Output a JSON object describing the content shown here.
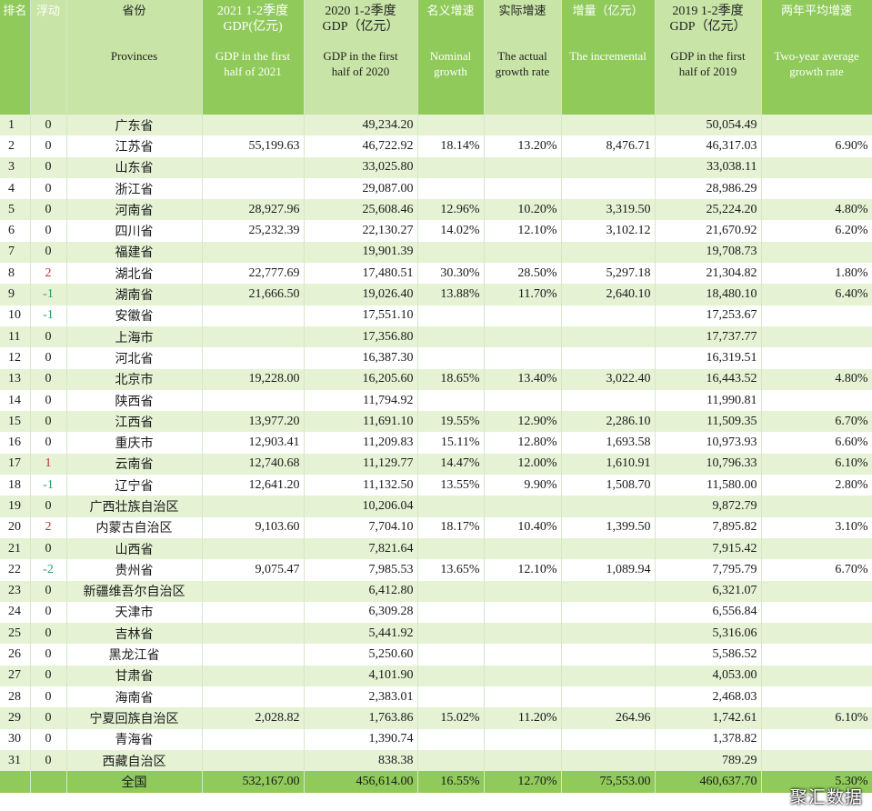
{
  "columns": {
    "rank": {
      "cn": "排名"
    },
    "float": {
      "cn": "浮动"
    },
    "province": {
      "cn": "省份",
      "en": "Provinces"
    },
    "gdp2021": {
      "cn1": "2021 1-2季度",
      "cn2": "GDP(亿元)",
      "en1": "GDP in the first",
      "en2": "half of 2021"
    },
    "gdp2020": {
      "cn1": "2020 1-2季度",
      "cn2": "GDP（亿元）",
      "en1": "GDP in the first",
      "en2": "half of 2020"
    },
    "nominal": {
      "cn": "名义增速",
      "en1": "Nominal",
      "en2": "growth"
    },
    "actual": {
      "cn": "实际增速",
      "en1": "The actual",
      "en2": "growth rate"
    },
    "increment": {
      "cn": "增量（亿元）",
      "en": "The incremental"
    },
    "gdp2019": {
      "cn1": "2019 1-2季度",
      "cn2": "GDP（亿元）",
      "en1": "GDP in the first",
      "en2": "half of 2019"
    },
    "avg": {
      "cn": "两年平均增速",
      "en1": "Two-year  average",
      "en2": "growth rate"
    }
  },
  "rows": [
    {
      "rank": "1",
      "float": "0",
      "province": "广东省",
      "gdp2021": "",
      "gdp2020": "49,234.20",
      "nominal": "",
      "actual": "",
      "increment": "",
      "gdp2019": "50,054.49",
      "avg": ""
    },
    {
      "rank": "2",
      "float": "0",
      "province": "江苏省",
      "gdp2021": "55,199.63",
      "gdp2020": "46,722.92",
      "nominal": "18.14%",
      "actual": "13.20%",
      "increment": "8,476.71",
      "gdp2019": "46,317.03",
      "avg": "6.90%"
    },
    {
      "rank": "3",
      "float": "0",
      "province": "山东省",
      "gdp2021": "",
      "gdp2020": "33,025.80",
      "nominal": "",
      "actual": "",
      "increment": "",
      "gdp2019": "33,038.11",
      "avg": ""
    },
    {
      "rank": "4",
      "float": "0",
      "province": "浙江省",
      "gdp2021": "",
      "gdp2020": "29,087.00",
      "nominal": "",
      "actual": "",
      "increment": "",
      "gdp2019": "28,986.29",
      "avg": ""
    },
    {
      "rank": "5",
      "float": "0",
      "province": "河南省",
      "gdp2021": "28,927.96",
      "gdp2020": "25,608.46",
      "nominal": "12.96%",
      "actual": "10.20%",
      "increment": "3,319.50",
      "gdp2019": "25,224.20",
      "avg": "4.80%"
    },
    {
      "rank": "6",
      "float": "0",
      "province": "四川省",
      "gdp2021": "25,232.39",
      "gdp2020": "22,130.27",
      "nominal": "14.02%",
      "actual": "12.10%",
      "increment": "3,102.12",
      "gdp2019": "21,670.92",
      "avg": "6.20%"
    },
    {
      "rank": "7",
      "float": "0",
      "province": "福建省",
      "gdp2021": "",
      "gdp2020": "19,901.39",
      "nominal": "",
      "actual": "",
      "increment": "",
      "gdp2019": "19,708.73",
      "avg": ""
    },
    {
      "rank": "8",
      "float": "2",
      "province": "湖北省",
      "gdp2021": "22,777.69",
      "gdp2020": "17,480.51",
      "nominal": "30.30%",
      "actual": "28.50%",
      "increment": "5,297.18",
      "gdp2019": "21,304.82",
      "avg": "1.80%"
    },
    {
      "rank": "9",
      "float": "-1",
      "province": "湖南省",
      "gdp2021": "21,666.50",
      "gdp2020": "19,026.40",
      "nominal": "13.88%",
      "actual": "11.70%",
      "increment": "2,640.10",
      "gdp2019": "18,480.10",
      "avg": "6.40%"
    },
    {
      "rank": "10",
      "float": "-1",
      "province": "安徽省",
      "gdp2021": "",
      "gdp2020": "17,551.10",
      "nominal": "",
      "actual": "",
      "increment": "",
      "gdp2019": "17,253.67",
      "avg": ""
    },
    {
      "rank": "11",
      "float": "0",
      "province": "上海市",
      "gdp2021": "",
      "gdp2020": "17,356.80",
      "nominal": "",
      "actual": "",
      "increment": "",
      "gdp2019": "17,737.77",
      "avg": ""
    },
    {
      "rank": "12",
      "float": "0",
      "province": "河北省",
      "gdp2021": "",
      "gdp2020": "16,387.30",
      "nominal": "",
      "actual": "",
      "increment": "",
      "gdp2019": "16,319.51",
      "avg": ""
    },
    {
      "rank": "13",
      "float": "0",
      "province": "北京市",
      "gdp2021": "19,228.00",
      "gdp2020": "16,205.60",
      "nominal": "18.65%",
      "actual": "13.40%",
      "increment": "3,022.40",
      "gdp2019": "16,443.52",
      "avg": "4.80%"
    },
    {
      "rank": "14",
      "float": "0",
      "province": "陕西省",
      "gdp2021": "",
      "gdp2020": "11,794.92",
      "nominal": "",
      "actual": "",
      "increment": "",
      "gdp2019": "11,990.81",
      "avg": ""
    },
    {
      "rank": "15",
      "float": "0",
      "province": "江西省",
      "gdp2021": "13,977.20",
      "gdp2020": "11,691.10",
      "nominal": "19.55%",
      "actual": "12.90%",
      "increment": "2,286.10",
      "gdp2019": "11,509.35",
      "avg": "6.70%"
    },
    {
      "rank": "16",
      "float": "0",
      "province": "重庆市",
      "gdp2021": "12,903.41",
      "gdp2020": "11,209.83",
      "nominal": "15.11%",
      "actual": "12.80%",
      "increment": "1,693.58",
      "gdp2019": "10,973.93",
      "avg": "6.60%"
    },
    {
      "rank": "17",
      "float": "1",
      "province": "云南省",
      "gdp2021": "12,740.68",
      "gdp2020": "11,129.77",
      "nominal": "14.47%",
      "actual": "12.00%",
      "increment": "1,610.91",
      "gdp2019": "10,796.33",
      "avg": "6.10%"
    },
    {
      "rank": "18",
      "float": "-1",
      "province": "辽宁省",
      "gdp2021": "12,641.20",
      "gdp2020": "11,132.50",
      "nominal": "13.55%",
      "actual": "9.90%",
      "increment": "1,508.70",
      "gdp2019": "11,580.00",
      "avg": "2.80%"
    },
    {
      "rank": "19",
      "float": "0",
      "province": "广西壮族自治区",
      "gdp2021": "",
      "gdp2020": "10,206.04",
      "nominal": "",
      "actual": "",
      "increment": "",
      "gdp2019": "9,872.79",
      "avg": ""
    },
    {
      "rank": "20",
      "float": "2",
      "province": "内蒙古自治区",
      "gdp2021": "9,103.60",
      "gdp2020": "7,704.10",
      "nominal": "18.17%",
      "actual": "10.40%",
      "increment": "1,399.50",
      "gdp2019": "7,895.82",
      "avg": "3.10%"
    },
    {
      "rank": "21",
      "float": "0",
      "province": "山西省",
      "gdp2021": "",
      "gdp2020": "7,821.64",
      "nominal": "",
      "actual": "",
      "increment": "",
      "gdp2019": "7,915.42",
      "avg": ""
    },
    {
      "rank": "22",
      "float": "-2",
      "province": "贵州省",
      "gdp2021": "9,075.47",
      "gdp2020": "7,985.53",
      "nominal": "13.65%",
      "actual": "12.10%",
      "increment": "1,089.94",
      "gdp2019": "7,795.79",
      "avg": "6.70%"
    },
    {
      "rank": "23",
      "float": "0",
      "province": "新疆维吾尔自治区",
      "gdp2021": "",
      "gdp2020": "6,412.80",
      "nominal": "",
      "actual": "",
      "increment": "",
      "gdp2019": "6,321.07",
      "avg": ""
    },
    {
      "rank": "24",
      "float": "0",
      "province": "天津市",
      "gdp2021": "",
      "gdp2020": "6,309.28",
      "nominal": "",
      "actual": "",
      "increment": "",
      "gdp2019": "6,556.84",
      "avg": ""
    },
    {
      "rank": "25",
      "float": "0",
      "province": "吉林省",
      "gdp2021": "",
      "gdp2020": "5,441.92",
      "nominal": "",
      "actual": "",
      "increment": "",
      "gdp2019": "5,316.06",
      "avg": ""
    },
    {
      "rank": "26",
      "float": "0",
      "province": "黑龙江省",
      "gdp2021": "",
      "gdp2020": "5,250.60",
      "nominal": "",
      "actual": "",
      "increment": "",
      "gdp2019": "5,586.52",
      "avg": ""
    },
    {
      "rank": "27",
      "float": "0",
      "province": "甘肃省",
      "gdp2021": "",
      "gdp2020": "4,101.90",
      "nominal": "",
      "actual": "",
      "increment": "",
      "gdp2019": "4,053.00",
      "avg": ""
    },
    {
      "rank": "28",
      "float": "0",
      "province": "海南省",
      "gdp2021": "",
      "gdp2020": "2,383.01",
      "nominal": "",
      "actual": "",
      "increment": "",
      "gdp2019": "2,468.03",
      "avg": ""
    },
    {
      "rank": "29",
      "float": "0",
      "province": "宁夏回族自治区",
      "gdp2021": "2,028.82",
      "gdp2020": "1,763.86",
      "nominal": "15.02%",
      "actual": "11.20%",
      "increment": "264.96",
      "gdp2019": "1,742.61",
      "avg": "6.10%"
    },
    {
      "rank": "30",
      "float": "0",
      "province": "青海省",
      "gdp2021": "",
      "gdp2020": "1,390.74",
      "nominal": "",
      "actual": "",
      "increment": "",
      "gdp2019": "1,378.82",
      "avg": ""
    },
    {
      "rank": "31",
      "float": "0",
      "province": "西藏自治区",
      "gdp2021": "",
      "gdp2020": "838.38",
      "nominal": "",
      "actual": "",
      "increment": "",
      "gdp2019": "789.29",
      "avg": ""
    }
  ],
  "total": {
    "province": "全国",
    "gdp2021": "532,167.00",
    "gdp2020": "456,614.00",
    "nominal": "16.55%",
    "actual": "12.70%",
    "increment": "75,553.00",
    "gdp2019": "460,637.70",
    "avg": "5.30%"
  },
  "watermark": "聚汇数据",
  "colors": {
    "header_bg": "#8fca5a",
    "header_highlight": "#c8e4a6",
    "row_stripe": "#e5f2d4",
    "float_up": "#c03030",
    "float_down": "#2a9d6a"
  }
}
